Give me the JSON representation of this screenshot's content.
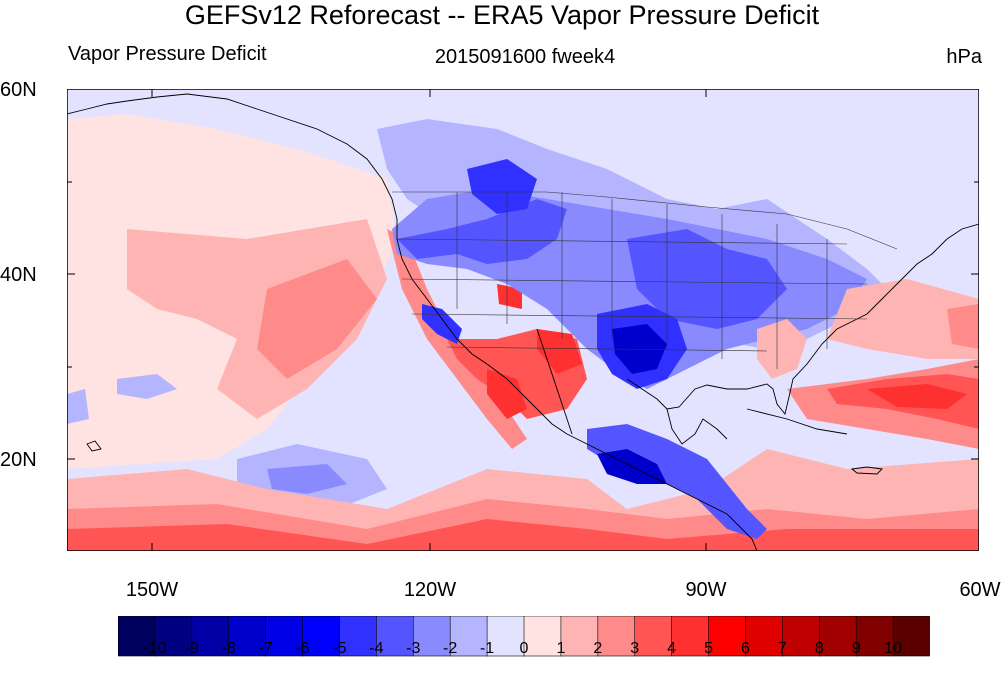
{
  "title": "GEFSv12 Reforecast -- ERA5 Vapor Pressure Deficit",
  "left_string": "Vapor Pressure Deficit",
  "center_string": "2015091600 fweek4",
  "right_string": "hPa",
  "lat_labels": [
    "60N",
    "40N",
    "20N"
  ],
  "lon_labels": [
    "150W",
    "120W",
    "90W",
    "60W"
  ],
  "colorbar": {
    "labels": [
      "-10",
      "-9",
      "-8",
      "-7",
      "-6",
      "-5",
      "-4",
      "-3",
      "-2",
      "-1",
      "0",
      "1",
      "2",
      "3",
      "4",
      "5",
      "6",
      "7",
      "8",
      "9",
      "10"
    ],
    "colors": [
      "#00005f",
      "#000080",
      "#0000a6",
      "#0000cc",
      "#0000e6",
      "#0000ff",
      "#3030ff",
      "#5555ff",
      "#8a8aff",
      "#b4b4ff",
      "#e3e3ff",
      "#ffe3e3",
      "#ffb4b4",
      "#ff8a8a",
      "#ff5555",
      "#ff3030",
      "#ff0000",
      "#e00000",
      "#c00000",
      "#a00000",
      "#800000",
      "#5a0000"
    ]
  },
  "map": {
    "extent": {
      "lon_min": -159,
      "lon_max": -60,
      "lat_min": 10,
      "lat_max": 60
    },
    "colors": {
      "neutral_pos": "#ffe3e3",
      "neutral_neg": "#e3e3ff",
      "coast": "#000000",
      "state": "#333333"
    }
  }
}
